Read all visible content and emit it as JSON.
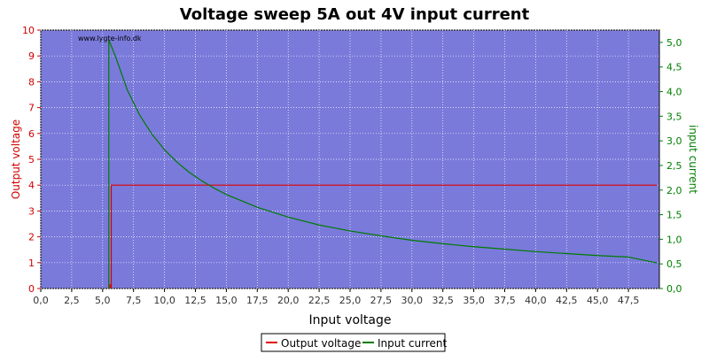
{
  "chart_data": {
    "type": "line",
    "title": "Voltage sweep 5A out 4V input current",
    "xlabel": "Input voltage",
    "ylabel_left": "Output voltage",
    "ylabel_right": "input current",
    "watermark": "www.lygte-info.dk",
    "xlim": [
      0,
      50
    ],
    "ylim_left": [
      0,
      10
    ],
    "ylim_right": [
      0,
      5.25
    ],
    "x_ticks": [
      "0,0",
      "2,5",
      "5,0",
      "7,5",
      "10,0",
      "12,5",
      "15,0",
      "17,5",
      "20,0",
      "22,5",
      "25,0",
      "27,5",
      "30,0",
      "32,5",
      "35,0",
      "37,5",
      "40,0",
      "42,5",
      "45,0",
      "47,5"
    ],
    "y_left_ticks": [
      "0",
      "1",
      "2",
      "3",
      "4",
      "5",
      "6",
      "7",
      "8",
      "9",
      "10"
    ],
    "y_right_ticks": [
      "0,0",
      "0,5",
      "1,0",
      "1,5",
      "2,0",
      "2,5",
      "3,0",
      "3,5",
      "4,0",
      "4,5",
      "5,0"
    ],
    "grid": true,
    "legend_position": "bottom-center",
    "colors": {
      "plot_background": "#7a7adb",
      "grid": "#ffffff",
      "output_voltage": "#e00000",
      "input_current": "#007a00",
      "left_axis": "#d00000",
      "right_axis": "#008000"
    },
    "series": [
      {
        "name": "Output voltage",
        "axis": "left",
        "x": [
          5.6,
          5.6,
          5.7,
          5.7,
          10,
          20,
          30,
          40,
          49.8
        ],
        "y": [
          0,
          0.15,
          0.05,
          4.0,
          4.0,
          4.0,
          4.0,
          4.0,
          4.0
        ]
      },
      {
        "name": "Input current",
        "axis": "right",
        "x": [
          5.5,
          5.5,
          6,
          7,
          8,
          9,
          10,
          11,
          12,
          13,
          14,
          15,
          17.5,
          20,
          22.5,
          25,
          27.5,
          30,
          32.5,
          35,
          37.5,
          40,
          42.5,
          45,
          47.5,
          49.8
        ],
        "y": [
          0,
          5.05,
          4.74,
          4.03,
          3.52,
          3.13,
          2.82,
          2.57,
          2.36,
          2.19,
          2.04,
          1.91,
          1.65,
          1.45,
          1.29,
          1.17,
          1.07,
          0.98,
          0.91,
          0.85,
          0.8,
          0.75,
          0.71,
          0.67,
          0.64,
          0.52
        ]
      }
    ]
  }
}
